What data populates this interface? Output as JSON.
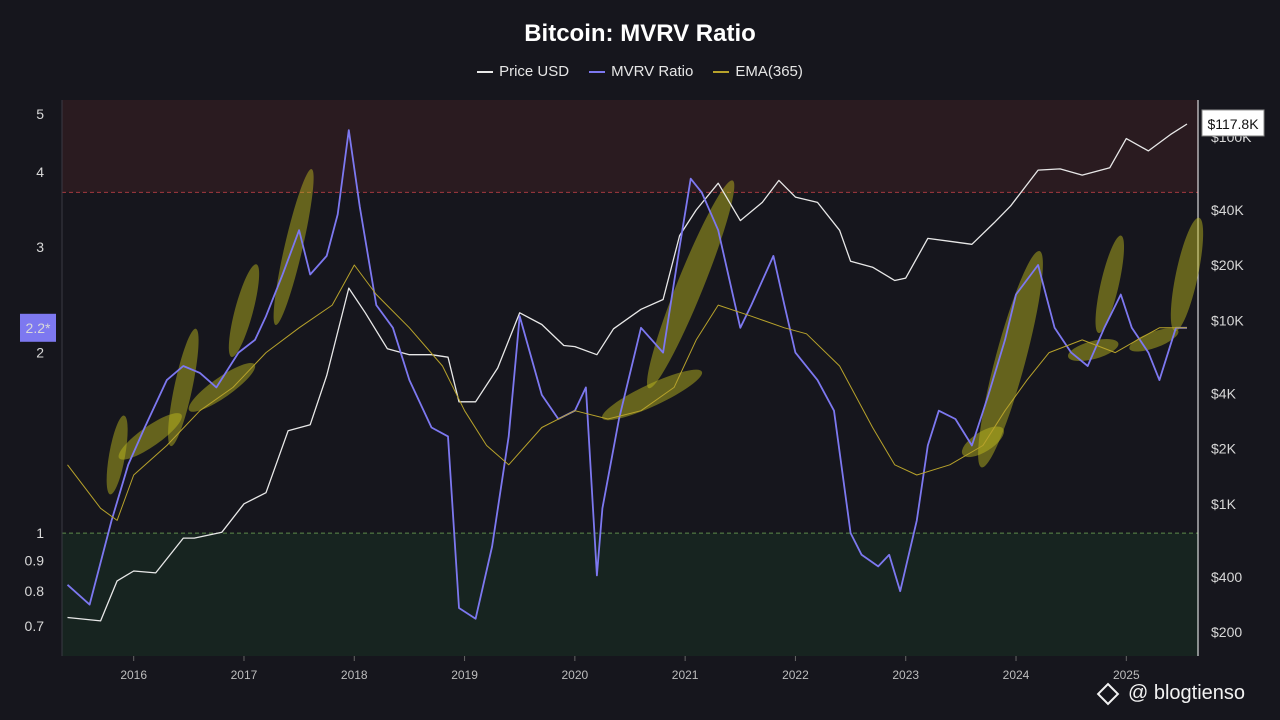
{
  "chart_data": {
    "type": "line",
    "title": "Bitcoin: MVRV Ratio",
    "legend": [
      "Price USD",
      "MVRV Ratio",
      "EMA(365)"
    ],
    "left_axis": {
      "scale": "log",
      "ticks": [
        "5",
        "4",
        "3",
        "2.2*",
        "2",
        "1",
        "0.9",
        "0.8",
        "0.7"
      ]
    },
    "right_axis": {
      "scale": "log",
      "ticks": [
        "$100K",
        "$40K",
        "$20K",
        "$10K",
        "$4K",
        "$2K",
        "$1K",
        "$400",
        "$200"
      ]
    },
    "x_ticks": [
      "2016",
      "2017",
      "2018",
      "2019",
      "2020",
      "2021",
      "2022",
      "2023",
      "2024",
      "2025"
    ],
    "current_price_label": "$117.8K",
    "current_mvrv_label": "2.2*",
    "bands": {
      "upper_threshold": 3.7,
      "lower_threshold": 1.0
    },
    "series": [
      {
        "name": "Price USD",
        "color": "#e8e8e8",
        "x": [
          2015.4,
          2015.7,
          2015.85,
          2016.0,
          2016.2,
          2016.45,
          2016.55,
          2016.8,
          2017.0,
          2017.2,
          2017.4,
          2017.6,
          2017.75,
          2017.95,
          2018.1,
          2018.3,
          2018.5,
          2018.7,
          2018.85,
          2018.95,
          2019.1,
          2019.3,
          2019.5,
          2019.7,
          2019.9,
          2020.0,
          2020.2,
          2020.35,
          2020.6,
          2020.8,
          2020.95,
          2021.1,
          2021.3,
          2021.5,
          2021.7,
          2021.85,
          2022.0,
          2022.2,
          2022.4,
          2022.5,
          2022.7,
          2022.9,
          2023.0,
          2023.2,
          2023.4,
          2023.6,
          2023.8,
          2023.95,
          2024.2,
          2024.4,
          2024.6,
          2024.85,
          2025.0,
          2025.2,
          2025.4,
          2025.55
        ],
        "values": [
          240,
          230,
          380,
          430,
          420,
          650,
          650,
          700,
          1000,
          1150,
          2500,
          2700,
          5000,
          15000,
          11000,
          7000,
          6500,
          6500,
          6300,
          3600,
          3600,
          5500,
          11000,
          9500,
          7300,
          7200,
          6500,
          9000,
          11500,
          13000,
          29000,
          40000,
          56000,
          35000,
          44000,
          58000,
          47000,
          44000,
          31000,
          21000,
          19500,
          16500,
          17000,
          28000,
          27000,
          26000,
          34000,
          42000,
          66000,
          67000,
          62000,
          68000,
          98000,
          84000,
          103000,
          117800
        ]
      },
      {
        "name": "MVRV Ratio",
        "color": "#7d78f0",
        "x": [
          2015.4,
          2015.6,
          2015.8,
          2015.95,
          2016.1,
          2016.3,
          2016.45,
          2016.6,
          2016.75,
          2016.95,
          2017.1,
          2017.2,
          2017.35,
          2017.5,
          2017.6,
          2017.75,
          2017.85,
          2017.95,
          2018.05,
          2018.2,
          2018.35,
          2018.5,
          2018.7,
          2018.85,
          2018.95,
          2019.1,
          2019.25,
          2019.4,
          2019.5,
          2019.7,
          2019.85,
          2020.0,
          2020.1,
          2020.2,
          2020.25,
          2020.4,
          2020.6,
          2020.8,
          2020.95,
          2021.05,
          2021.15,
          2021.3,
          2021.5,
          2021.6,
          2021.8,
          2021.9,
          2022.0,
          2022.2,
          2022.35,
          2022.5,
          2022.6,
          2022.75,
          2022.85,
          2022.95,
          2023.1,
          2023.2,
          2023.3,
          2023.45,
          2023.6,
          2023.75,
          2023.9,
          2024.0,
          2024.2,
          2024.35,
          2024.5,
          2024.65,
          2024.8,
          2024.95,
          2025.05,
          2025.2,
          2025.3,
          2025.45,
          2025.55
        ],
        "values": [
          0.82,
          0.76,
          1.05,
          1.3,
          1.5,
          1.8,
          1.9,
          1.85,
          1.75,
          2.0,
          2.1,
          2.3,
          2.7,
          3.2,
          2.7,
          2.9,
          3.4,
          4.7,
          3.5,
          2.4,
          2.2,
          1.8,
          1.5,
          1.45,
          0.75,
          0.72,
          0.95,
          1.45,
          2.3,
          1.7,
          1.55,
          1.6,
          1.75,
          0.85,
          1.1,
          1.55,
          2.2,
          2.0,
          3.0,
          3.9,
          3.7,
          3.2,
          2.2,
          2.4,
          2.9,
          2.4,
          2.0,
          1.8,
          1.6,
          1.0,
          0.92,
          0.88,
          0.92,
          0.8,
          1.05,
          1.4,
          1.6,
          1.55,
          1.4,
          1.7,
          2.1,
          2.5,
          2.8,
          2.2,
          2.0,
          1.9,
          2.2,
          2.5,
          2.2,
          2.0,
          1.8,
          2.2,
          2.2
        ]
      },
      {
        "name": "EMA(365)",
        "color": "#b7a22b",
        "x": [
          2015.4,
          2015.7,
          2015.85,
          2016.0,
          2016.3,
          2016.6,
          2016.9,
          2017.2,
          2017.5,
          2017.8,
          2018.0,
          2018.2,
          2018.5,
          2018.8,
          2019.0,
          2019.2,
          2019.4,
          2019.7,
          2020.0,
          2020.3,
          2020.6,
          2020.9,
          2021.1,
          2021.3,
          2021.6,
          2021.9,
          2022.1,
          2022.4,
          2022.7,
          2022.9,
          2023.1,
          2023.4,
          2023.7,
          2023.9,
          2024.1,
          2024.3,
          2024.6,
          2024.9,
          2025.1,
          2025.3,
          2025.55
        ],
        "values": [
          1.3,
          1.1,
          1.05,
          1.25,
          1.4,
          1.6,
          1.75,
          2.0,
          2.2,
          2.4,
          2.8,
          2.5,
          2.2,
          1.9,
          1.6,
          1.4,
          1.3,
          1.5,
          1.6,
          1.55,
          1.6,
          1.75,
          2.1,
          2.4,
          2.3,
          2.2,
          2.15,
          1.9,
          1.5,
          1.3,
          1.25,
          1.3,
          1.4,
          1.6,
          1.8,
          2.0,
          2.1,
          2.0,
          2.1,
          2.2,
          2.2
        ]
      }
    ],
    "highlight_color": "#c6c21e"
  },
  "watermark": "@ blogtienso"
}
